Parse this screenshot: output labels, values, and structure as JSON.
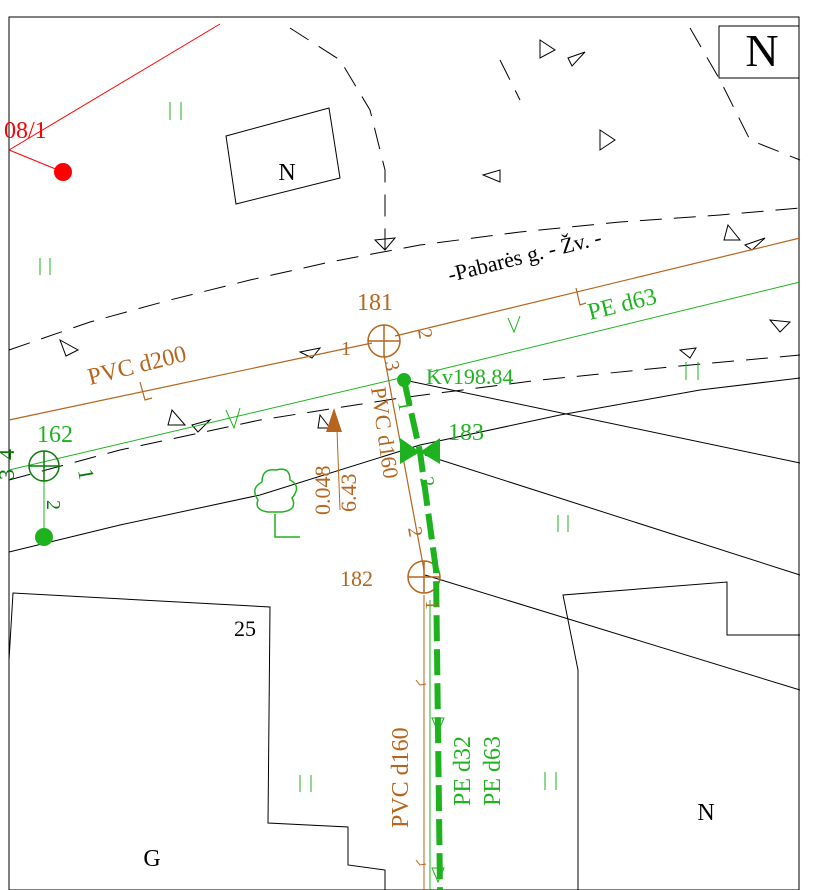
{
  "colors": {
    "sewer": "#b5651d",
    "water": "#1fb21f",
    "water_dark": "#0a7a0a",
    "parcel_red": "#ff0000",
    "line": "#000000",
    "background": "#ffffff"
  },
  "north_label": "N",
  "parcel_label": "08/1",
  "street_label": "-Pabarės g. - Žv. -",
  "buildings": {
    "top_building": "N",
    "left_building_number": "25",
    "left_building_type": "G",
    "right_building": "N"
  },
  "sewer": {
    "pipe_main": "PVC d200",
    "pipe_branch": "PVC d160",
    "pipe_lower": "PVC d160",
    "manhole_181": "181",
    "manhole_182": "182",
    "measure_slope": "0.048",
    "measure_length": "6.43",
    "branch_181_1": "1",
    "branch_181_2": "2",
    "branch_181_3": "3",
    "branch_182_1": "1",
    "branch_182_2": "2",
    "seg_1": "1",
    "seg_2": "2"
  },
  "water": {
    "pipe_main": "PE d63",
    "pipe_lower_a": "PE d32",
    "pipe_lower_b": "PE d63",
    "well_162": "162",
    "valve_183": "183",
    "node_label": "Kv198.84",
    "branch_162_1": "1",
    "branch_162_2": "2",
    "branch_162_3": "3",
    "branch_162_4": "4"
  }
}
